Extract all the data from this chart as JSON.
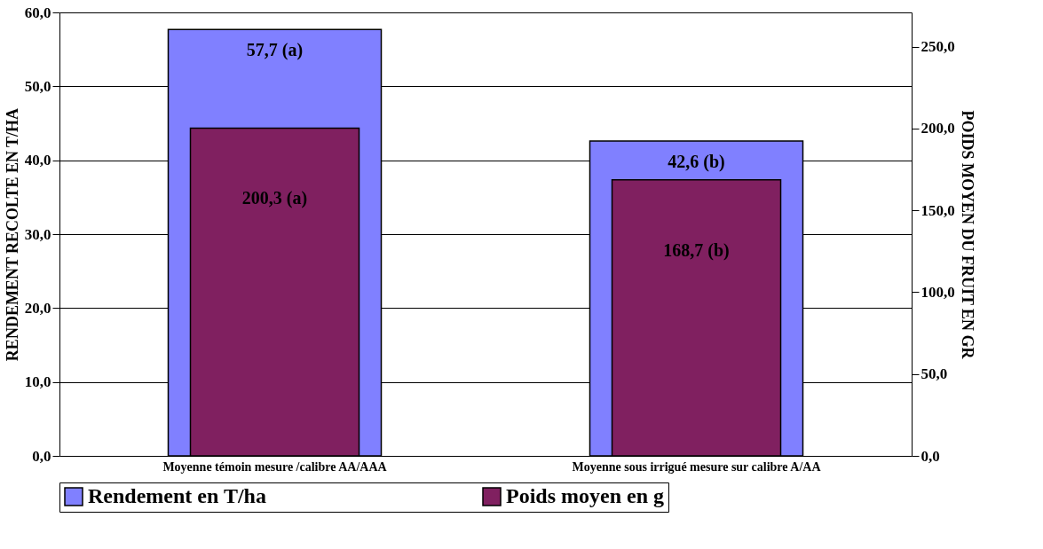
{
  "chart_data": {
    "type": "bar",
    "categories": [
      "Moyenne témoin mesure /calibre AA/AAA",
      "Moyenne sous irrigué mesure sur calibre A/AA"
    ],
    "series": [
      {
        "name": "Rendement en T/ha",
        "color": "#8080ff",
        "values": [
          57.7,
          42.6
        ],
        "value_labels": [
          "57,7 (a)",
          "42,6 (b)"
        ]
      },
      {
        "name": "Poids moyen en g",
        "color": "#802060",
        "values": [
          200.3,
          168.7
        ],
        "value_labels": [
          "200,3 (a)",
          "168,7 (b)"
        ],
        "axis": "y2"
      }
    ],
    "ylabel": "RENDEMENT RECOLTE EN T/HA",
    "y2label": "POIDS MOYEN DU FRUIT EN GR",
    "ylim": [
      0,
      60
    ],
    "yticks": [
      {
        "value": 0,
        "label": "0,0"
      },
      {
        "value": 10,
        "label": "10,0"
      },
      {
        "value": 20,
        "label": "20,0"
      },
      {
        "value": 30,
        "label": "30,0"
      },
      {
        "value": 40,
        "label": "40,0"
      },
      {
        "value": 50,
        "label": "50,0"
      },
      {
        "value": 60,
        "label": "60,0"
      }
    ],
    "y2lim": [
      0,
      271
    ],
    "y2ticks": [
      {
        "value": 0,
        "label": "0,0"
      },
      {
        "value": 50,
        "label": "50,0"
      },
      {
        "value": 100,
        "label": "100,0"
      },
      {
        "value": 150,
        "label": "150,0"
      },
      {
        "value": 200,
        "label": "200,0"
      },
      {
        "value": 250,
        "label": "250,0"
      }
    ],
    "grid": "y",
    "legend": "bottom"
  }
}
